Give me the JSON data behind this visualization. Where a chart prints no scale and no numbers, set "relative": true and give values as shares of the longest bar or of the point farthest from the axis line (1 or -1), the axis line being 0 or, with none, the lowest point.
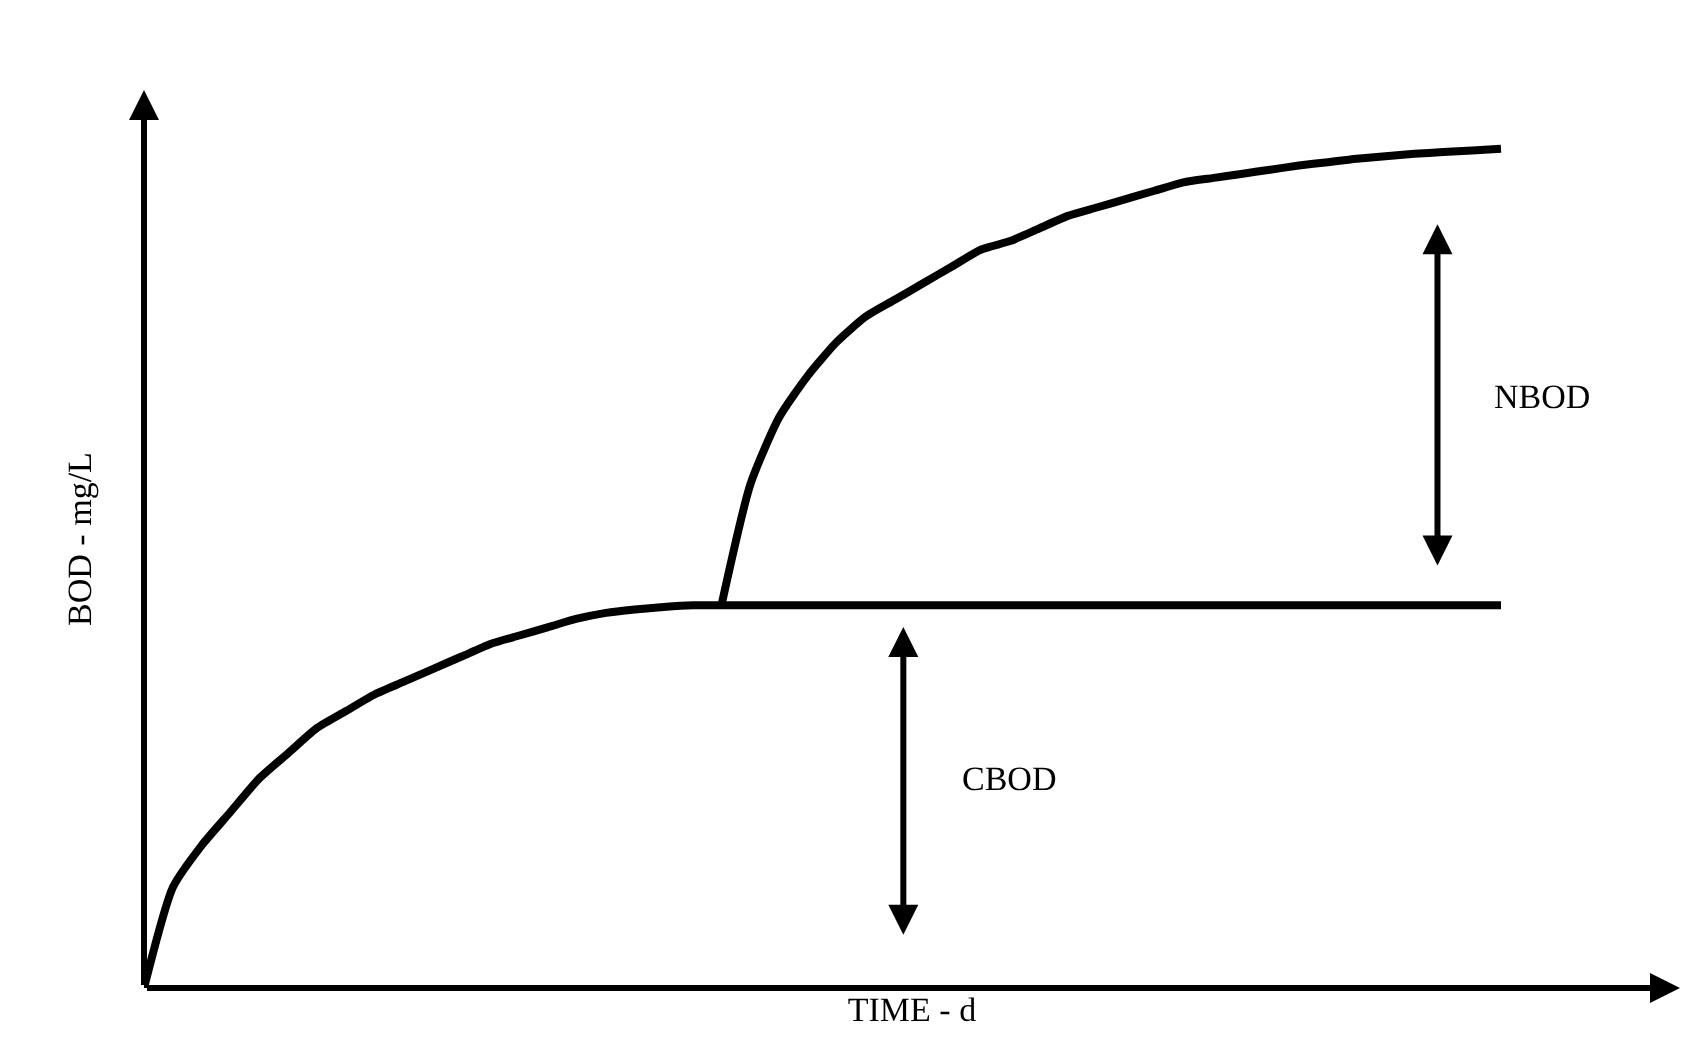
{
  "chart_data": {
    "type": "line",
    "relative": true,
    "xlabel": "TIME - d",
    "ylabel": "BOD - mg/L",
    "annotations": [
      "NBOD",
      "CBOD"
    ],
    "categories": [
      null,
      null,
      null,
      null,
      null,
      null,
      null,
      null,
      null,
      null,
      null,
      null,
      null,
      null,
      null,
      null,
      null,
      null,
      null,
      null,
      null,
      null,
      null,
      null,
      null,
      null,
      null,
      null,
      null,
      null,
      null,
      null,
      null,
      null,
      null,
      null,
      null,
      null,
      null,
      null,
      null,
      null,
      null,
      null,
      null,
      null,
      null,
      null
    ],
    "series": [
      {
        "color": "#000000",
        "values": [
          0,
          0.12,
          0.17,
          0.21,
          0.25,
          0.28,
          0.31,
          0.33,
          0.35,
          0.365,
          0.38,
          0.395,
          0.41,
          0.42,
          0.43,
          0.44,
          0.447,
          0.451,
          0.454,
          0.456,
          0.456,
          0.456,
          0.456,
          0.456,
          0.456,
          0.456,
          0.456,
          0.456,
          0.456,
          0.456,
          0.456,
          0.456,
          0.456,
          0.456,
          0.456,
          0.456,
          0.456,
          0.456,
          0.456,
          0.456,
          0.456,
          0.456,
          0.456,
          0.456,
          0.456,
          0.456,
          0.456,
          0.456
        ]
      },
      {
        "color": "#000000",
        "values": [
          null,
          null,
          null,
          null,
          null,
          null,
          null,
          null,
          null,
          null,
          null,
          null,
          null,
          null,
          null,
          null,
          null,
          null,
          null,
          null,
          0.456,
          0.6,
          0.68,
          0.73,
          0.77,
          0.8,
          0.82,
          0.84,
          0.86,
          0.88,
          0.89,
          0.905,
          0.92,
          0.93,
          0.94,
          0.95,
          0.96,
          0.965,
          0.97,
          0.975,
          0.98,
          0.984,
          0.988,
          0.991,
          0.994,
          0.996,
          0.998,
          1
        ]
      }
    ]
  }
}
